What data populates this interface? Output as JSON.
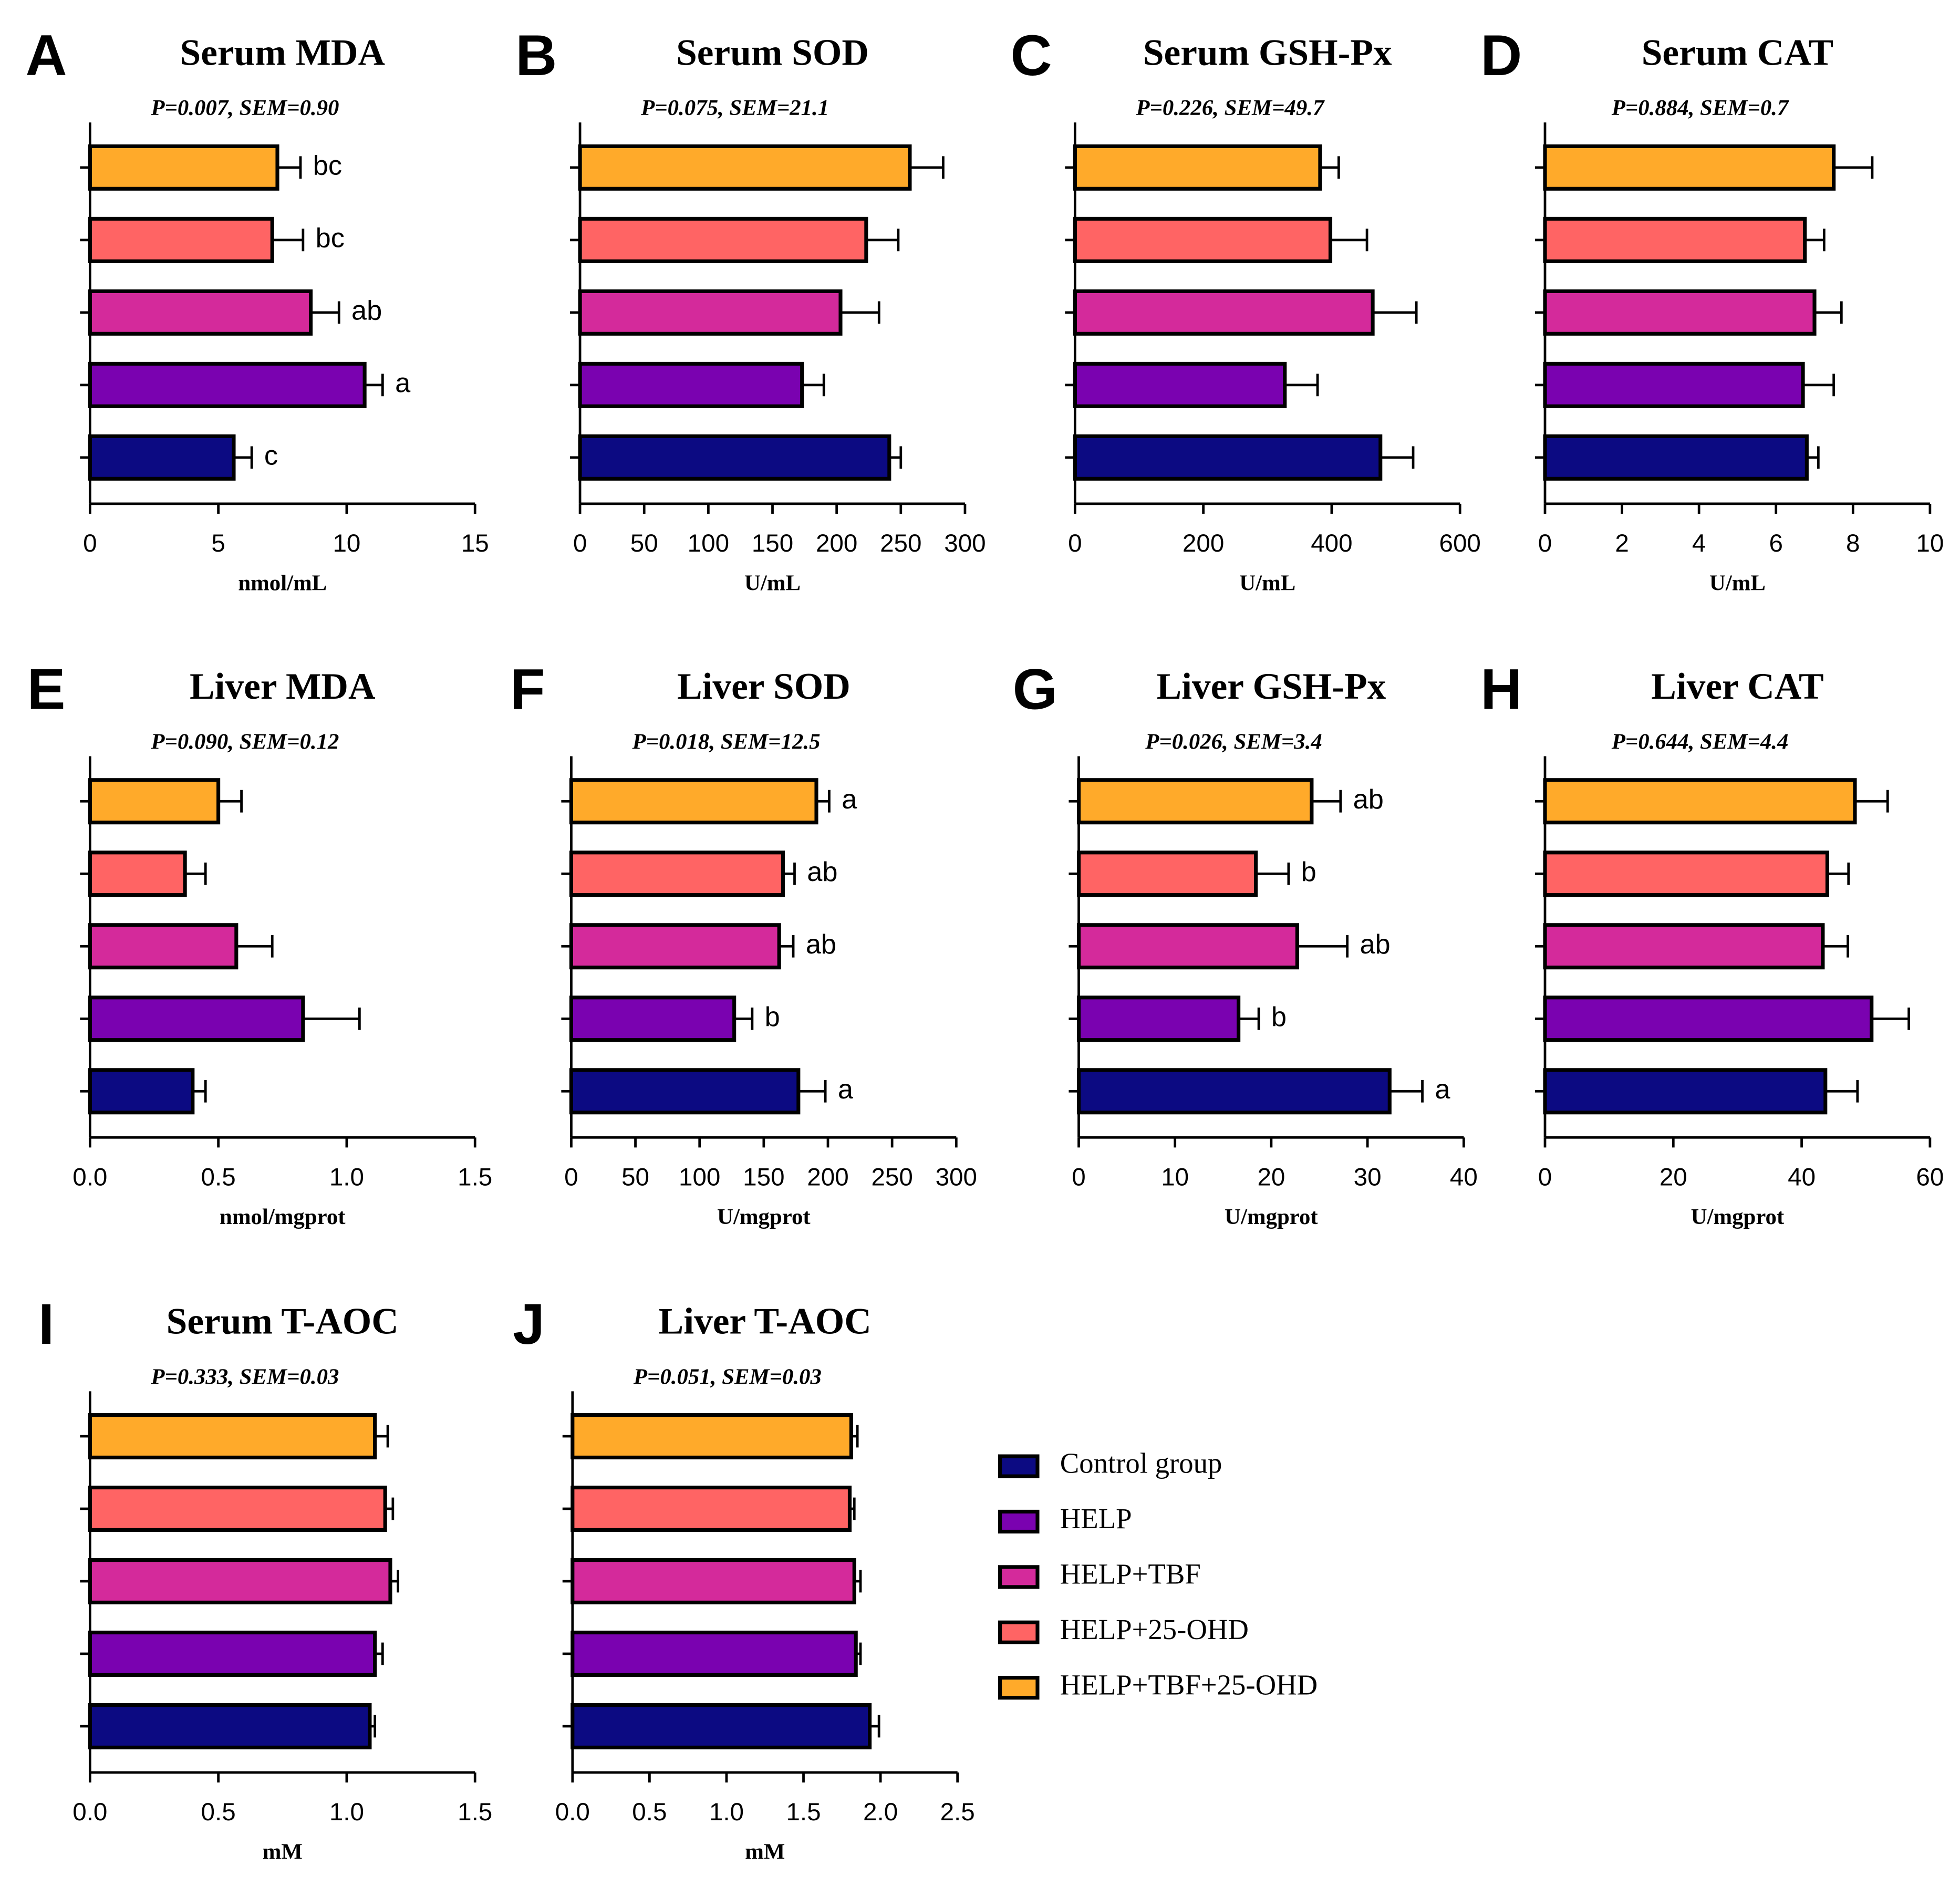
{
  "groups": [
    {
      "name": "Control group",
      "color": "#0c0a82"
    },
    {
      "name": "HELP",
      "color": "#7a02b0"
    },
    {
      "name": "HELP+TBF",
      "color": "#d42a9b"
    },
    {
      "name": "HELP+25-OHD",
      "color": "#ff6464"
    },
    {
      "name": "HELP+TBF+25-OHD",
      "color": "#ffaa2a"
    }
  ],
  "chart_data": [
    {
      "type": "bar",
      "panel": "A",
      "title": "Serum MDA",
      "subtitle": "P=0.007, SEM=0.90",
      "xlabel": "nmol/mL",
      "values": [
        5.6,
        10.7,
        8.6,
        7.1,
        7.3
      ],
      "errors": [
        0.7,
        0.7,
        1.1,
        1.2,
        0.9
      ],
      "letters": [
        "c",
        "a",
        "ab",
        "bc",
        "bc"
      ],
      "xlim": [
        0,
        15
      ],
      "xticks": [
        0,
        5,
        10,
        15
      ]
    },
    {
      "type": "bar",
      "panel": "B",
      "title": "Serum SOD",
      "subtitle": "P=0.075, SEM=21.1",
      "xlabel": "U/mL",
      "values": [
        241,
        173,
        203,
        223,
        257
      ],
      "errors": [
        9,
        17,
        30,
        25,
        26
      ],
      "xlim": [
        0,
        300
      ],
      "xticks": [
        0,
        50,
        100,
        150,
        200,
        250,
        300
      ]
    },
    {
      "type": "bar",
      "panel": "C",
      "title": "Serum GSH-Px",
      "subtitle": "P=0.226, SEM=49.7",
      "xlabel": "U/mL",
      "values": [
        476,
        327,
        464,
        398,
        382
      ],
      "errors": [
        51,
        51,
        68,
        57,
        29
      ],
      "xlim": [
        0,
        600
      ],
      "xticks": [
        0,
        200,
        400,
        600
      ]
    },
    {
      "type": "bar",
      "panel": "D",
      "title": "Serum CAT",
      "subtitle": "P=0.884, SEM=0.7",
      "xlabel": "U/mL",
      "values": [
        6.8,
        6.7,
        7.0,
        6.75,
        7.5
      ],
      "errors": [
        0.3,
        0.8,
        0.7,
        0.5,
        1.0
      ],
      "xlim": [
        0,
        10
      ],
      "xticks": [
        0,
        2,
        4,
        6,
        8,
        10
      ]
    },
    {
      "type": "bar",
      "panel": "E",
      "title": "Liver MDA",
      "subtitle": "P=0.090, SEM=0.12",
      "xlabel": "nmol/mgprot",
      "values": [
        0.4,
        0.83,
        0.57,
        0.37,
        0.5
      ],
      "errors": [
        0.05,
        0.22,
        0.14,
        0.08,
        0.09
      ],
      "xlim": [
        0,
        1.5
      ],
      "xticks": [
        {
          "value": 0,
          "label": "0.0"
        },
        0.5,
        {
          "value": 1,
          "label": "1.0"
        },
        1.5
      ]
    },
    {
      "type": "bar",
      "panel": "F",
      "title": "Liver SOD",
      "subtitle": "P=0.018, SEM=12.5",
      "xlabel": "U/mgprot",
      "values": [
        177,
        127,
        162,
        165,
        191
      ],
      "errors": [
        21,
        14,
        11,
        9,
        10
      ],
      "letters": [
        "a",
        "b",
        "ab",
        "ab",
        "a"
      ],
      "xlim": [
        0,
        300
      ],
      "xticks": [
        0,
        50,
        100,
        150,
        200,
        250,
        300
      ]
    },
    {
      "type": "bar",
      "panel": "G",
      "title": "Liver GSH-Px",
      "subtitle": "P=0.026, SEM=3.4",
      "xlabel": "U/mgprot",
      "values": [
        32.3,
        16.6,
        22.7,
        18.4,
        24.2
      ],
      "errors": [
        3.4,
        2.1,
        5.2,
        3.4,
        3.0
      ],
      "letters": [
        "a",
        "b",
        "ab",
        "b",
        "ab"
      ],
      "xlim": [
        0,
        40
      ],
      "xticks": [
        0,
        10,
        20,
        30,
        40
      ]
    },
    {
      "type": "bar",
      "panel": "H",
      "title": "Liver CAT",
      "subtitle": "P=0.644, SEM=4.4",
      "xlabel": "U/mgprot",
      "values": [
        43.7,
        50.9,
        43.3,
        44.0,
        48.3
      ],
      "errors": [
        5.0,
        5.8,
        3.9,
        3.3,
        5.1
      ],
      "xlim": [
        0,
        60
      ],
      "xticks": [
        0,
        20,
        40,
        60
      ]
    },
    {
      "type": "bar",
      "panel": "I",
      "title": "Serum T-AOC",
      "subtitle": "P=0.333, SEM=0.03",
      "xlabel": "mM",
      "values": [
        1.09,
        1.11,
        1.17,
        1.15,
        1.11
      ],
      "errors": [
        0.02,
        0.03,
        0.03,
        0.03,
        0.05
      ],
      "xlim": [
        0,
        1.5
      ],
      "xticks": [
        {
          "value": 0,
          "label": "0.0"
        },
        0.5,
        {
          "value": 1,
          "label": "1.0"
        },
        1.5
      ]
    },
    {
      "type": "bar",
      "panel": "J",
      "title": "Liver T-AOC",
      "subtitle": "P=0.051, SEM=0.03",
      "xlabel": "mM",
      "values": [
        1.93,
        1.84,
        1.83,
        1.8,
        1.81
      ],
      "errors": [
        0.06,
        0.03,
        0.04,
        0.03,
        0.04
      ],
      "xlim": [
        0,
        2.5
      ],
      "xticks": [
        {
          "value": 0,
          "label": "0.0"
        },
        0.5,
        {
          "value": 1,
          "label": "1.0"
        },
        1.5,
        {
          "value": 2,
          "label": "2.0"
        },
        2.5
      ]
    }
  ]
}
